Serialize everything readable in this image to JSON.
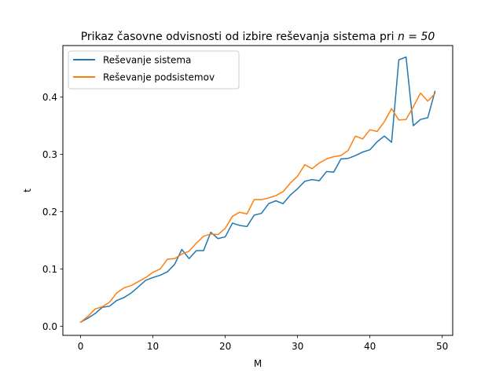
{
  "chart_data": {
    "type": "line",
    "title": "Prikaz časovne odvisnosti od izbire reševanja sistema pri ",
    "title_math": "n = 50",
    "xlabel": "M",
    "ylabel": "t",
    "xlim": [
      -2.45,
      51.45
    ],
    "ylim": [
      -0.016,
      0.49
    ],
    "xticks": [
      0,
      10,
      20,
      30,
      40,
      50
    ],
    "yticks": [
      0.0,
      0.1,
      0.2,
      0.3,
      0.4
    ],
    "xtick_labels": [
      "0",
      "10",
      "20",
      "30",
      "40",
      "50"
    ],
    "ytick_labels": [
      "0.0",
      "0.1",
      "0.2",
      "0.3",
      "0.4"
    ],
    "grid": false,
    "legend_position": "top-left",
    "x": [
      0,
      1,
      2,
      3,
      4,
      5,
      6,
      7,
      8,
      9,
      10,
      11,
      12,
      13,
      14,
      15,
      16,
      17,
      18,
      19,
      20,
      21,
      22,
      23,
      24,
      25,
      26,
      27,
      28,
      29,
      30,
      31,
      32,
      33,
      34,
      35,
      36,
      37,
      38,
      39,
      40,
      41,
      42,
      43,
      44,
      45,
      46,
      47,
      48,
      49
    ],
    "series": [
      {
        "name": "Reševanje sistema",
        "color": "#1f77b4",
        "values": [
          0.007,
          0.014,
          0.022,
          0.033,
          0.035,
          0.045,
          0.05,
          0.058,
          0.069,
          0.08,
          0.085,
          0.089,
          0.095,
          0.108,
          0.134,
          0.118,
          0.132,
          0.132,
          0.164,
          0.153,
          0.156,
          0.18,
          0.176,
          0.174,
          0.194,
          0.197,
          0.214,
          0.219,
          0.214,
          0.229,
          0.24,
          0.253,
          0.256,
          0.254,
          0.27,
          0.269,
          0.292,
          0.293,
          0.298,
          0.304,
          0.308,
          0.322,
          0.332,
          0.321,
          0.465,
          0.47,
          0.35,
          0.361,
          0.364,
          0.41
        ]
      },
      {
        "name": "Reševanje podsistemov",
        "color": "#ff7f0e",
        "values": [
          0.007,
          0.017,
          0.03,
          0.034,
          0.042,
          0.058,
          0.067,
          0.071,
          0.078,
          0.085,
          0.094,
          0.1,
          0.117,
          0.118,
          0.126,
          0.131,
          0.145,
          0.157,
          0.161,
          0.16,
          0.171,
          0.192,
          0.199,
          0.196,
          0.221,
          0.221,
          0.224,
          0.228,
          0.235,
          0.25,
          0.262,
          0.282,
          0.275,
          0.285,
          0.292,
          0.296,
          0.298,
          0.307,
          0.332,
          0.327,
          0.343,
          0.34,
          0.357,
          0.38,
          0.36,
          0.361,
          0.383,
          0.407,
          0.393,
          0.406
        ]
      }
    ]
  }
}
